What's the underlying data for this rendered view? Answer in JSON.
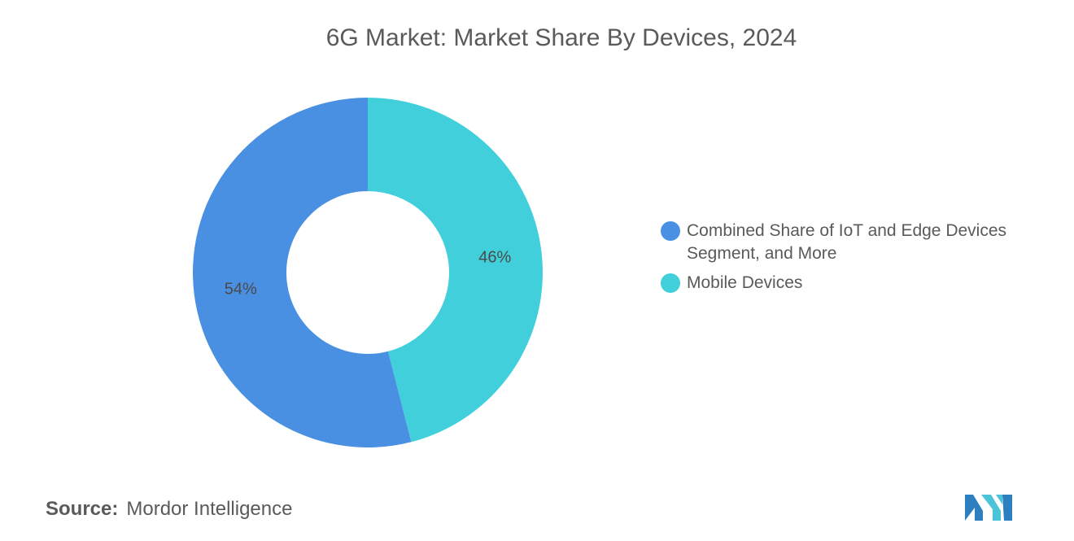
{
  "chart_data": {
    "type": "pie",
    "title": "6G Market: Market Share By Devices, 2024",
    "donut": true,
    "slices": [
      {
        "label": "Mobile Devices",
        "value": 46,
        "display": "46%",
        "color": "#41D0DB"
      },
      {
        "label": "Combined Share of IoT and Edge Devices Segment, and More",
        "value": 54,
        "display": "54%",
        "color": "#4A90E2"
      }
    ],
    "legend_position": "right"
  },
  "legend": [
    {
      "label": "Combined Share of IoT and Edge Devices Segment, and More",
      "color": "#4A90E2"
    },
    {
      "label": "Mobile Devices",
      "color": "#41D0DB"
    }
  ],
  "source": {
    "label": "Source:",
    "value": "Mordor Intelligence"
  },
  "logo": {
    "icon": "mordor-intelligence-logo"
  }
}
